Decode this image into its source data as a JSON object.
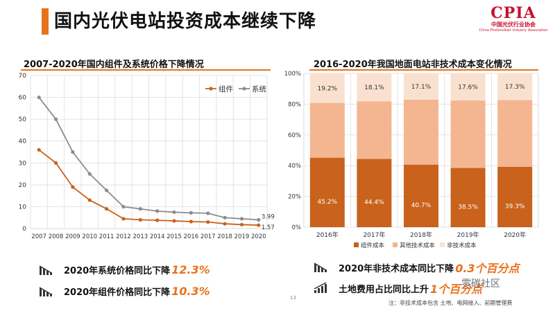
{
  "header": {
    "title": "国内光伏电站投资成本继续下降"
  },
  "logo": {
    "abbr": "CPIA",
    "cn_name": "中国光伏行业协会",
    "en_name": "China Photovoltaic Industry Association"
  },
  "colors": {
    "accent": "#e8721c",
    "module_line": "#c8621c",
    "system_line": "#8c8c8c",
    "seg_component": "#c8621c",
    "seg_other_tech": "#f4b690",
    "seg_non_tech": "#fae1cf"
  },
  "chart_data": [
    {
      "type": "line",
      "title": "2007-2020年国内组件及系统价格下降情况",
      "x": [
        "2007",
        "2008",
        "2009",
        "2010",
        "2011",
        "2012",
        "2013",
        "2014",
        "2015",
        "2016",
        "2017",
        "2018",
        "2019",
        "2020"
      ],
      "series": [
        {
          "name": "组件",
          "values": [
            36,
            30,
            19,
            13,
            9,
            4.5,
            4,
            3.8,
            3.5,
            3.2,
            3,
            2.2,
            1.8,
            1.57
          ]
        },
        {
          "name": "系统",
          "values": [
            60,
            50,
            35,
            25,
            17.5,
            10,
            9,
            8,
            7.5,
            7.2,
            7,
            5,
            4.5,
            3.99
          ]
        }
      ],
      "ylim": [
        0,
        70
      ],
      "yticks": [
        "0",
        "10",
        "20",
        "30",
        "40",
        "50",
        "60",
        "70"
      ],
      "end_labels": [
        "3.99",
        "1.57"
      ],
      "grid": true,
      "legend": "top-right"
    },
    {
      "type": "bar",
      "stacked": true,
      "title": "2016-2020年我国地面电站非技术成本变化情况",
      "categories": [
        "2016年",
        "2017年",
        "2018年",
        "2019年",
        "2020年"
      ],
      "series": [
        {
          "name": "组件成本",
          "values": [
            45.2,
            44.4,
            40.7,
            38.5,
            39.3
          ],
          "labels": [
            "45.2%",
            "44.4%",
            "40.7%",
            "38.5%",
            "39.3%"
          ]
        },
        {
          "name": "其他技术成本",
          "values": [
            35.6,
            37.5,
            42.2,
            43.9,
            43.4
          ],
          "labels": [
            "",
            "",
            "",
            "",
            ""
          ]
        },
        {
          "name": "非技术成本",
          "values": [
            19.2,
            18.1,
            17.1,
            17.6,
            17.3
          ],
          "labels": [
            "19.2%",
            "18.1%",
            "17.1%",
            "17.6%",
            "17.3%"
          ]
        }
      ],
      "ylim": [
        0,
        100
      ],
      "yticks": [
        "0%",
        "20%",
        "40%",
        "60%",
        "80%",
        "100%"
      ],
      "grid": true,
      "legend": "bottom"
    }
  ],
  "summaries": {
    "left": [
      {
        "text": "2020年系统价格同比下降",
        "value": "12.3%",
        "icon": "declining-bars-icon"
      },
      {
        "text": "2020年组件价格同比下降",
        "value": "10.3%",
        "icon": "declining-bars-icon"
      }
    ],
    "right": [
      {
        "text": "2020年非技术成本同比下降",
        "value": "0.3个百分点",
        "icon": "declining-bars-icon"
      },
      {
        "text": "土地费用占比同比上升",
        "value": "1个百分点",
        "icon": "rising-bars-icon"
      }
    ]
  },
  "footnote": "注：非技术成本包含 土地、电网接入、前期管理费",
  "watermark": "零碳社区",
  "page_number": "13"
}
